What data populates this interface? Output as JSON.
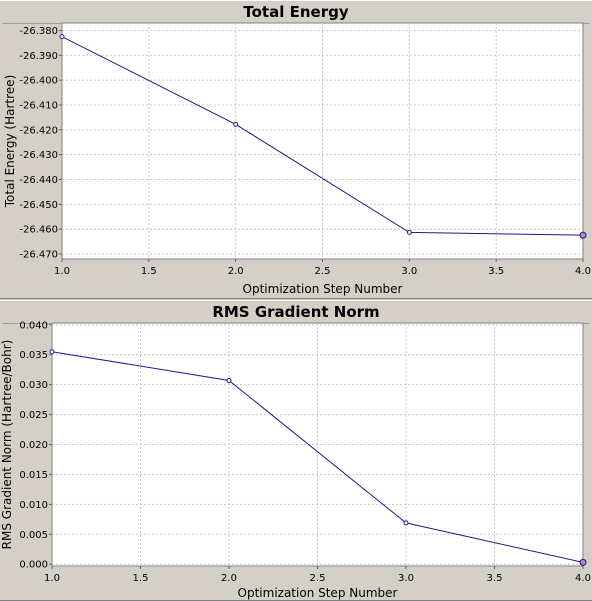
{
  "chart_data": [
    {
      "type": "line",
      "title": "Total Energy",
      "xlabel": "Optimization Step Number",
      "ylabel": "Total Energy (Hartree)",
      "x": [
        1.0,
        2.0,
        3.0,
        4.0
      ],
      "series": [
        {
          "values": [
            -26.3825,
            -26.4178,
            -26.4613,
            -26.4624
          ],
          "color": "#1c1c8c"
        }
      ],
      "xlim": [
        1.0,
        4.0
      ],
      "ylim": [
        -26.472,
        -26.377
      ],
      "xticks": [
        "1.0",
        "1.5",
        "2.0",
        "2.5",
        "3.0",
        "3.5",
        "4.0"
      ],
      "yticks": [
        "-26.380",
        "-26.390",
        "-26.400",
        "-26.410",
        "-26.420",
        "-26.430",
        "-26.440",
        "-26.450",
        "-26.460",
        "-26.470"
      ],
      "grid": true
    },
    {
      "type": "line",
      "title": "RMS Gradient Norm",
      "xlabel": "Optimization Step Number",
      "ylabel": "RMS Gradient Norm (Hartree/Bohr)",
      "x": [
        1.0,
        2.0,
        3.0,
        4.0
      ],
      "series": [
        {
          "values": [
            0.0355,
            0.0307,
            0.0069,
            0.0003
          ],
          "color": "#1c1c8c"
        }
      ],
      "xlim": [
        1.0,
        4.0
      ],
      "ylim": [
        -0.0003,
        0.0403
      ],
      "xticks": [
        "1.0",
        "1.5",
        "2.0",
        "2.5",
        "3.0",
        "3.5",
        "4.0"
      ],
      "yticks": [
        "0.040",
        "0.035",
        "0.030",
        "0.025",
        "0.020",
        "0.015",
        "0.010",
        "0.005",
        "0.000"
      ],
      "grid": true
    }
  ]
}
